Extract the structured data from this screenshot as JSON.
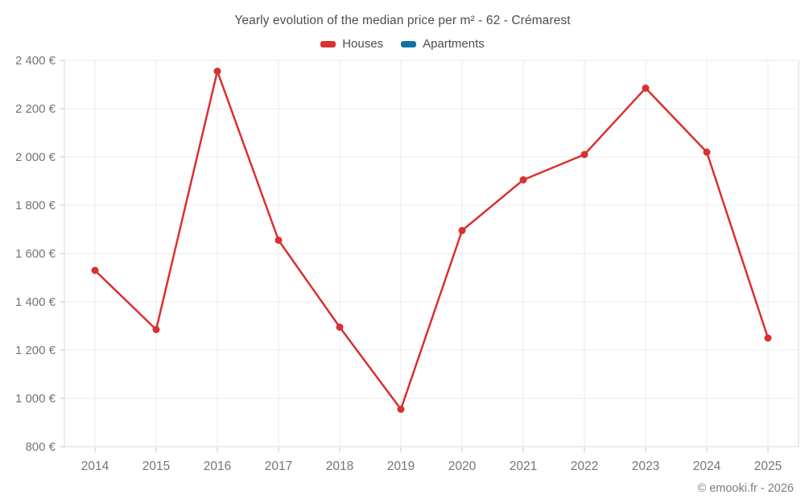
{
  "header": {
    "title": "Yearly evolution of the median price per m² - 62 - Crémarest"
  },
  "legend": [
    {
      "label": "Houses",
      "color": "#d93030"
    },
    {
      "label": "Apartments",
      "color": "#1173a2"
    }
  ],
  "footer": {
    "credit": "© emooki.fr - 2026"
  },
  "chart_data": {
    "type": "line",
    "title": "Yearly evolution of the median price per m² - 62 - Crémarest",
    "categories": [
      "2014",
      "2015",
      "2016",
      "2017",
      "2018",
      "2019",
      "2020",
      "2021",
      "2022",
      "2023",
      "2024",
      "2025"
    ],
    "series": [
      {
        "name": "Houses",
        "color": "#d93030",
        "values": [
          1530,
          1285,
          2355,
          1655,
          1295,
          955,
          1695,
          1905,
          2010,
          2285,
          2020,
          1250
        ]
      },
      {
        "name": "Apartments",
        "color": "#1173a2",
        "values": []
      }
    ],
    "xlabel": "",
    "ylabel": "",
    "ylim": [
      800,
      2400
    ],
    "ytick_step": 200,
    "ytick_suffix": " €",
    "grid": true,
    "legend_position": "top"
  },
  "style": {
    "grid_color": "#ebebeb",
    "axis_color": "#d9d9d9",
    "tick_color": "#c9c9c9",
    "axis_label_color": "#757575",
    "point_radius": 4.5,
    "line_width": 2.5
  }
}
